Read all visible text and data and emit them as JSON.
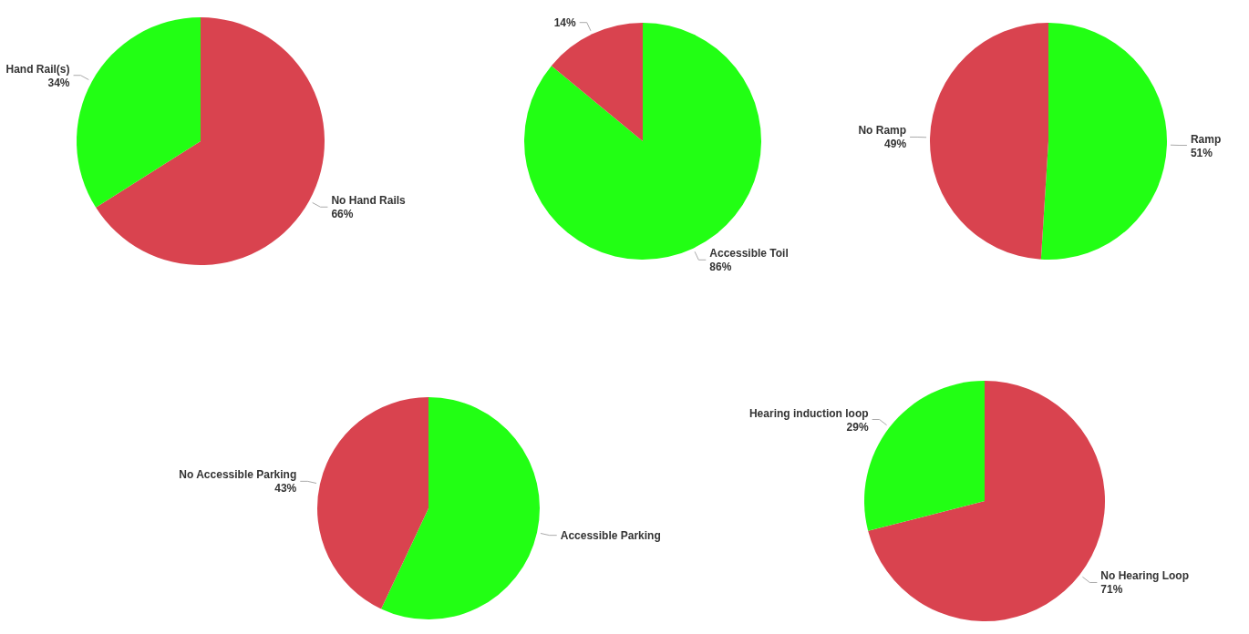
{
  "chart_data": [
    {
      "type": "pie",
      "categories": [
        "No Hand Rails",
        "Hand Rail(s)"
      ],
      "values": [
        66,
        34
      ],
      "colors": [
        "#d9434f",
        "#22ff14"
      ],
      "value_labels": [
        "66%",
        "34%"
      ]
    },
    {
      "type": "pie",
      "categories": [
        "Accessible Toil",
        null
      ],
      "values": [
        86,
        14
      ],
      "colors": [
        "#22ff14",
        "#d9434f"
      ],
      "value_labels": [
        "86%",
        "14%"
      ]
    },
    {
      "type": "pie",
      "categories": [
        "Ramp",
        "No Ramp"
      ],
      "values": [
        51,
        49
      ],
      "colors": [
        "#22ff14",
        "#d9434f"
      ],
      "value_labels": [
        "51%",
        "49%"
      ]
    },
    {
      "type": "pie",
      "categories": [
        "Accessible Parking",
        "No Accessible Parking"
      ],
      "values": [
        57,
        43
      ],
      "colors": [
        "#22ff14",
        "#d9434f"
      ],
      "value_labels": [
        null,
        "43%"
      ]
    },
    {
      "type": "pie",
      "categories": [
        "No Hearing Loop",
        "Hearing induction loop"
      ],
      "values": [
        71,
        29
      ],
      "colors": [
        "#d9434f",
        "#22ff14"
      ],
      "value_labels": [
        "71%",
        "29%"
      ]
    }
  ]
}
